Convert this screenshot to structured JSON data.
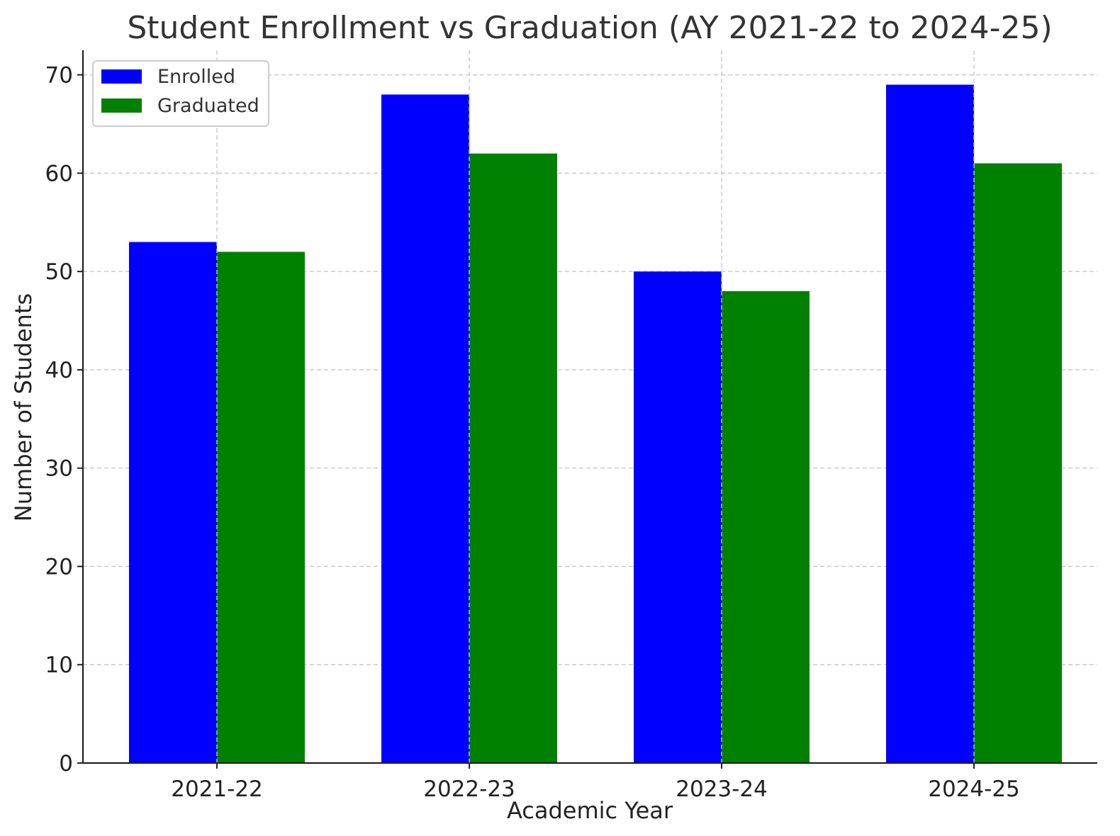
{
  "chart_data": {
    "type": "bar",
    "title": "Student Enrollment vs Graduation (AY 2021-22 to 2024-25)",
    "xlabel": "Academic Year",
    "ylabel": "Number of Students",
    "categories": [
      "2021-22",
      "2022-23",
      "2023-24",
      "2024-25"
    ],
    "series": [
      {
        "name": "Enrolled",
        "color": "#0000ff",
        "values": [
          53,
          68,
          50,
          69
        ]
      },
      {
        "name": "Graduated",
        "color": "#008000",
        "values": [
          52,
          62,
          48,
          61
        ]
      }
    ],
    "ylim": [
      0,
      72.5
    ],
    "yticks": [
      "0",
      "10",
      "20",
      "30",
      "40",
      "50",
      "60",
      "70"
    ],
    "grid": true,
    "legend_position": "upper left"
  }
}
